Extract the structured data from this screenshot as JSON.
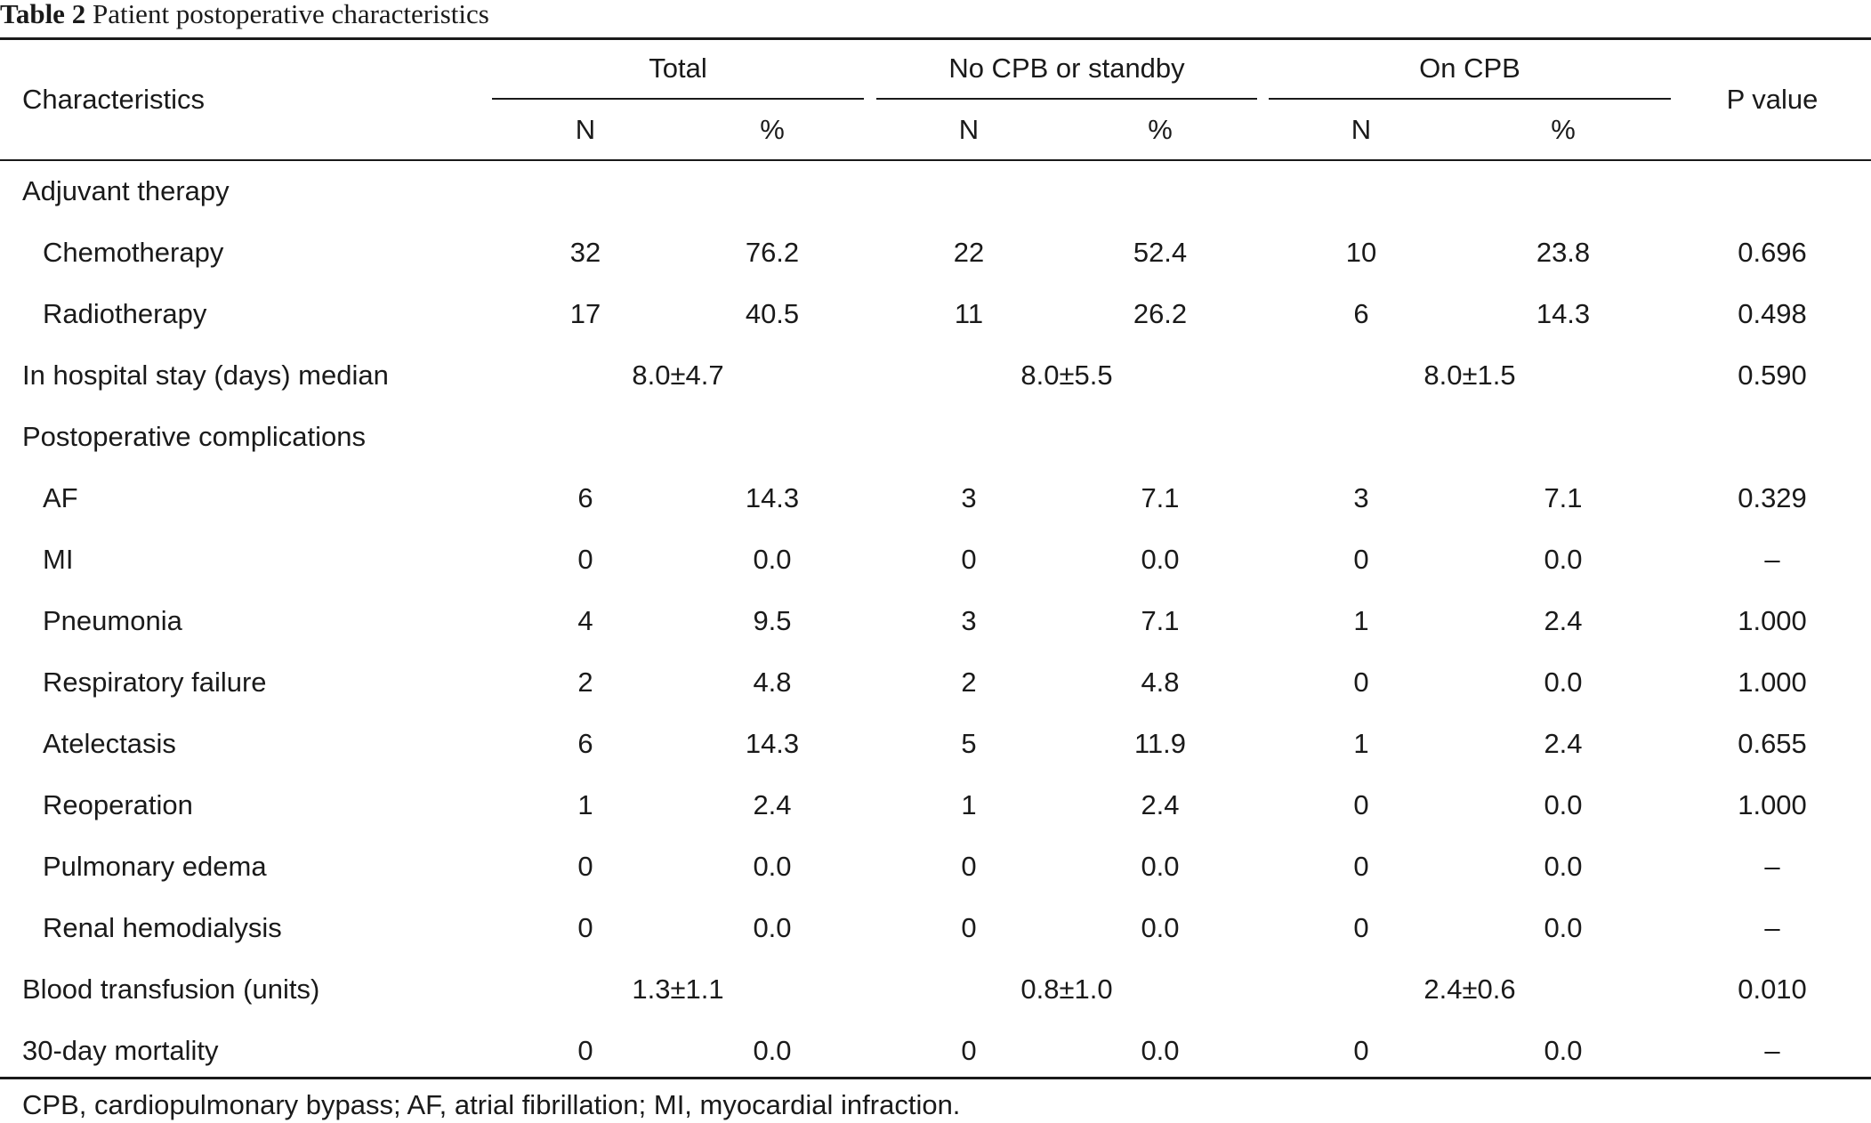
{
  "caption": {
    "label": "Table 2",
    "text": "Patient postoperative characteristics"
  },
  "header": {
    "characteristics": "Characteristics",
    "p_value": "P value",
    "groups": [
      "Total",
      "No CPB or standby",
      "On CPB"
    ],
    "sub": [
      "N",
      "%",
      "N",
      "%",
      "N",
      "%"
    ]
  },
  "rows": [
    {
      "label": "Adjuvant therapy",
      "indent": false,
      "type": "section"
    },
    {
      "label": "Chemotherapy",
      "indent": true,
      "type": "data",
      "cells": [
        "32",
        "76.2",
        "22",
        "52.4",
        "10",
        "23.8"
      ],
      "p": "0.696"
    },
    {
      "label": "Radiotherapy",
      "indent": true,
      "type": "data",
      "cells": [
        "17",
        "40.5",
        "11",
        "26.2",
        "6",
        "14.3"
      ],
      "p": "0.498"
    },
    {
      "label": "In hospital stay (days) median",
      "indent": false,
      "type": "merged",
      "merged": [
        "8.0±4.7",
        "8.0±5.5",
        "8.0±1.5"
      ],
      "p": "0.590"
    },
    {
      "label": "Postoperative complications",
      "indent": false,
      "type": "section"
    },
    {
      "label": "AF",
      "indent": true,
      "type": "data",
      "cells": [
        "6",
        "14.3",
        "3",
        "7.1",
        "3",
        "7.1"
      ],
      "p": "0.329"
    },
    {
      "label": "MI",
      "indent": true,
      "type": "data",
      "cells": [
        "0",
        "0.0",
        "0",
        "0.0",
        "0",
        "0.0"
      ],
      "p": "–"
    },
    {
      "label": "Pneumonia",
      "indent": true,
      "type": "data",
      "cells": [
        "4",
        "9.5",
        "3",
        "7.1",
        "1",
        "2.4"
      ],
      "p": "1.000"
    },
    {
      "label": "Respiratory failure",
      "indent": true,
      "type": "data",
      "cells": [
        "2",
        "4.8",
        "2",
        "4.8",
        "0",
        "0.0"
      ],
      "p": "1.000"
    },
    {
      "label": "Atelectasis",
      "indent": true,
      "type": "data",
      "cells": [
        "6",
        "14.3",
        "5",
        "11.9",
        "1",
        "2.4"
      ],
      "p": "0.655"
    },
    {
      "label": "Reoperation",
      "indent": true,
      "type": "data",
      "cells": [
        "1",
        "2.4",
        "1",
        "2.4",
        "0",
        "0.0"
      ],
      "p": "1.000"
    },
    {
      "label": "Pulmonary edema",
      "indent": true,
      "type": "data",
      "cells": [
        "0",
        "0.0",
        "0",
        "0.0",
        "0",
        "0.0"
      ],
      "p": "–"
    },
    {
      "label": "Renal hemodialysis",
      "indent": true,
      "type": "data",
      "cells": [
        "0",
        "0.0",
        "0",
        "0.0",
        "0",
        "0.0"
      ],
      "p": "–"
    },
    {
      "label": "Blood transfusion (units)",
      "indent": false,
      "type": "merged",
      "merged": [
        "1.3±1.1",
        "0.8±1.0",
        "2.4±0.6"
      ],
      "p": "0.010"
    },
    {
      "label": "30-day mortality",
      "indent": false,
      "type": "data",
      "cells": [
        "0",
        "0.0",
        "0",
        "0.0",
        "0",
        "0.0"
      ],
      "p": "–"
    }
  ],
  "footnote": "CPB, cardiopulmonary bypass; AF, atrial fibrillation; MI, myocardial infraction."
}
